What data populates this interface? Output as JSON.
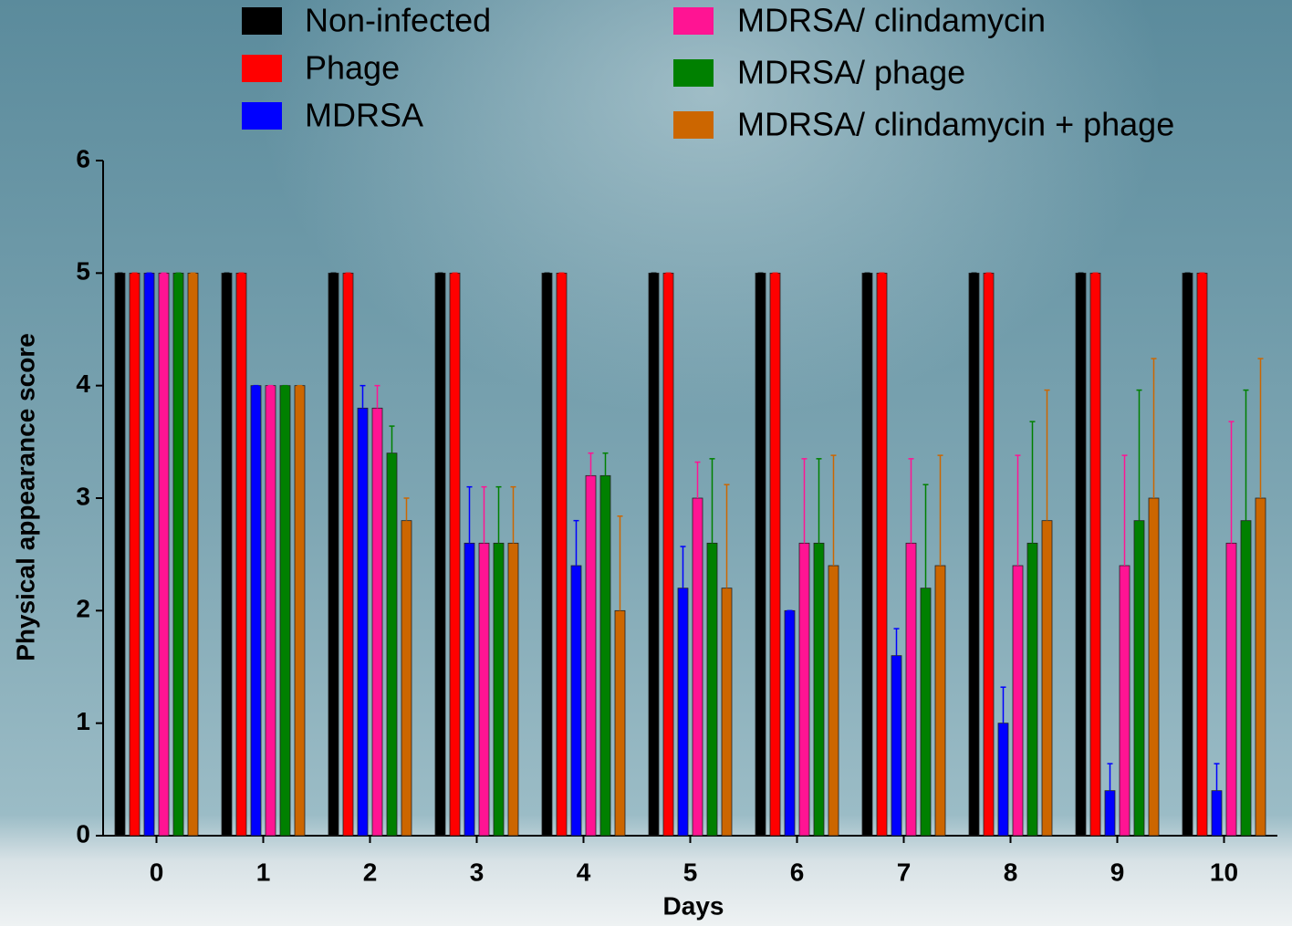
{
  "chart_data": {
    "type": "bar",
    "x_label": "Days",
    "y_label": "Physical appearance score",
    "categories": [
      "0",
      "1",
      "2",
      "3",
      "4",
      "5",
      "6",
      "7",
      "8",
      "9",
      "10"
    ],
    "ylim": [
      0,
      6
    ],
    "yticks": [
      0,
      1,
      2,
      3,
      4,
      5,
      6
    ],
    "series": [
      {
        "name": "Non-infected",
        "color": "#000000",
        "values": [
          5,
          5,
          5,
          5,
          5,
          5,
          5,
          5,
          5,
          5,
          5
        ],
        "errors": [
          0,
          0,
          0,
          0,
          0,
          0,
          0,
          0,
          0,
          0,
          0
        ]
      },
      {
        "name": "Phage",
        "color": "#ff0000",
        "values": [
          5,
          5,
          5,
          5,
          5,
          5,
          5,
          5,
          5,
          5,
          5
        ],
        "errors": [
          0,
          0,
          0,
          0,
          0,
          0,
          0,
          0,
          0,
          0,
          0
        ]
      },
      {
        "name": "MDRSA",
        "color": "#0000ff",
        "values": [
          5,
          4,
          3.8,
          2.6,
          2.4,
          2.2,
          2.0,
          1.6,
          1.0,
          0.4,
          0.4
        ],
        "errors": [
          0,
          0,
          0.2,
          0.5,
          0.4,
          0.37,
          0,
          0.24,
          0.32,
          0.24,
          0.24
        ]
      },
      {
        "name": "MDRSA/ clindamycin",
        "color": "#ff1493",
        "values": [
          5,
          4,
          3.8,
          2.6,
          3.2,
          3.0,
          2.6,
          2.6,
          2.4,
          2.4,
          2.6
        ],
        "errors": [
          0,
          0,
          0.2,
          0.5,
          0.2,
          0.32,
          0.75,
          0.75,
          0.98,
          0.98,
          1.08
        ]
      },
      {
        "name": "MDRSA/ phage",
        "color": "#008000",
        "values": [
          5,
          4,
          3.4,
          2.6,
          3.2,
          2.6,
          2.6,
          2.2,
          2.6,
          2.8,
          2.8
        ],
        "errors": [
          0,
          0,
          0.24,
          0.5,
          0.2,
          0.75,
          0.75,
          0.92,
          1.08,
          1.16,
          1.16
        ]
      },
      {
        "name": "MDRSA/ clindamycin + phage",
        "color": "#cc6600",
        "values": [
          5,
          4,
          2.8,
          2.6,
          2.0,
          2.2,
          2.4,
          2.4,
          2.8,
          3.0,
          3.0
        ],
        "errors": [
          0,
          0,
          0.2,
          0.5,
          0.84,
          0.92,
          0.98,
          0.98,
          1.16,
          1.24,
          1.24
        ]
      }
    ]
  }
}
